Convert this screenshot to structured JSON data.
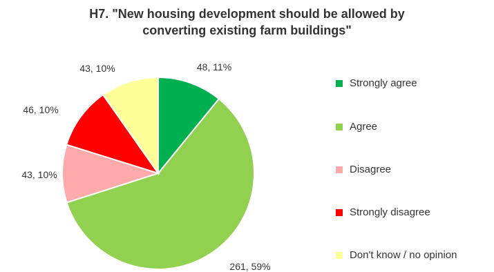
{
  "chart_data": {
    "type": "pie",
    "title_lines": [
      "H7. \"New housing development should be allowed by",
      "converting existing farm buildings\""
    ],
    "slices": [
      {
        "name": "Strongly agree",
        "value": 48,
        "percent": "11%",
        "label": "48, 11%",
        "color": "#00b050"
      },
      {
        "name": "Agree",
        "value": 261,
        "percent": "59%",
        "label": "261, 59%",
        "color": "#92d050"
      },
      {
        "name": "Disagree",
        "value": 43,
        "percent": "10%",
        "label": "43, 10%",
        "color": "#ffaaaa"
      },
      {
        "name": "Strongly disagree",
        "value": 46,
        "percent": "10%",
        "label": "46, 10%",
        "color": "#ff0000"
      },
      {
        "name": "Don't know / no opinion",
        "value": 43,
        "percent": "10%",
        "label": "43, 10%",
        "color": "#ffff99"
      }
    ],
    "legend_position": "right"
  }
}
